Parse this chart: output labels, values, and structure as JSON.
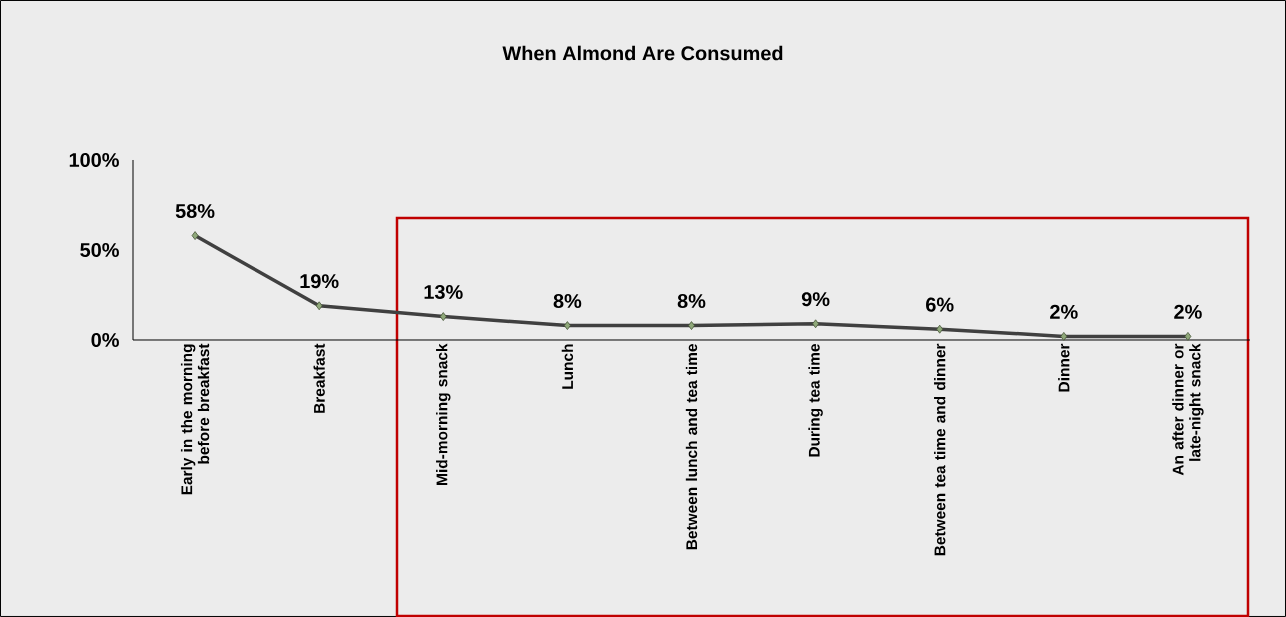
{
  "chart_data": {
    "type": "line",
    "title": "When Almond Are Consumed",
    "categories": [
      "Early in the morning before breakfast",
      "Breakfast",
      "Mid-morning snack",
      "Lunch",
      "Between lunch and tea time",
      "During tea time",
      "Between tea time and dinner",
      "Dinner",
      "An after dinner or late-night snack"
    ],
    "series": [
      {
        "color": "#404040",
        "values": [
          58,
          19,
          13,
          8,
          8,
          9,
          6,
          2,
          2
        ],
        "value_labels": [
          "58%",
          "19%",
          "13%",
          "8%",
          "8%",
          "9%",
          "6%",
          "2%",
          "2%"
        ]
      }
    ],
    "ylim": [
      0,
      100
    ],
    "yticks": [
      {
        "value": 0,
        "label": "0%"
      },
      {
        "value": 50,
        "label": "50%"
      },
      {
        "value": 100,
        "label": "100%"
      }
    ],
    "marker": "diamond",
    "line_style": "solid"
  }
}
